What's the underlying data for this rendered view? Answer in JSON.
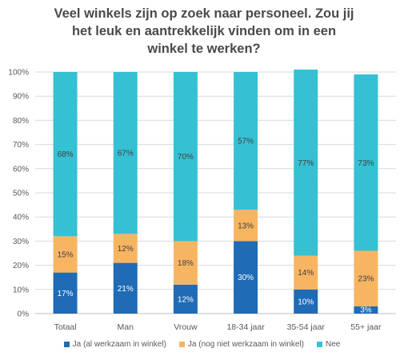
{
  "chart_data": {
    "type": "bar",
    "stacked": true,
    "title_lines": [
      "Veel winkels zijn op zoek naar personeel. Zou jij",
      "het leuk en aantrekkelijk vinden om in een",
      "winkel te werken?"
    ],
    "categories": [
      "Totaal",
      "Man",
      "Vrouw",
      "18-34 jaar",
      "35-54 jaar",
      "55+ jaar"
    ],
    "series": [
      {
        "name": "Ja (al werkzaam in winkel)",
        "color": "#1f6bb6",
        "label_color": "#ffffff",
        "values": [
          17,
          21,
          12,
          30,
          10,
          3
        ],
        "labels": [
          "17%",
          "21%",
          "12%",
          "30%",
          "10%",
          "3%"
        ]
      },
      {
        "name": "Ja (nog niet werkzaam in winkel)",
        "color": "#f7b562",
        "label_color": "#404040",
        "values": [
          15,
          12,
          18,
          13,
          14,
          23
        ],
        "labels": [
          "15%",
          "12%",
          "18%",
          "13%",
          "14%",
          "23%"
        ]
      },
      {
        "name": "Nee",
        "color": "#36c0d3",
        "label_color": "#404040",
        "values": [
          68,
          67,
          70,
          57,
          77,
          73
        ],
        "labels": [
          "68%",
          "67%",
          "70%",
          "57%",
          "77%",
          "73%"
        ]
      }
    ],
    "y_ticks": [
      "0%",
      "10%",
      "20%",
      "30%",
      "40%",
      "50%",
      "60%",
      "70%",
      "80%",
      "90%",
      "100%"
    ],
    "ylim": [
      0,
      100
    ],
    "grid": true,
    "legend_position": "bottom"
  }
}
